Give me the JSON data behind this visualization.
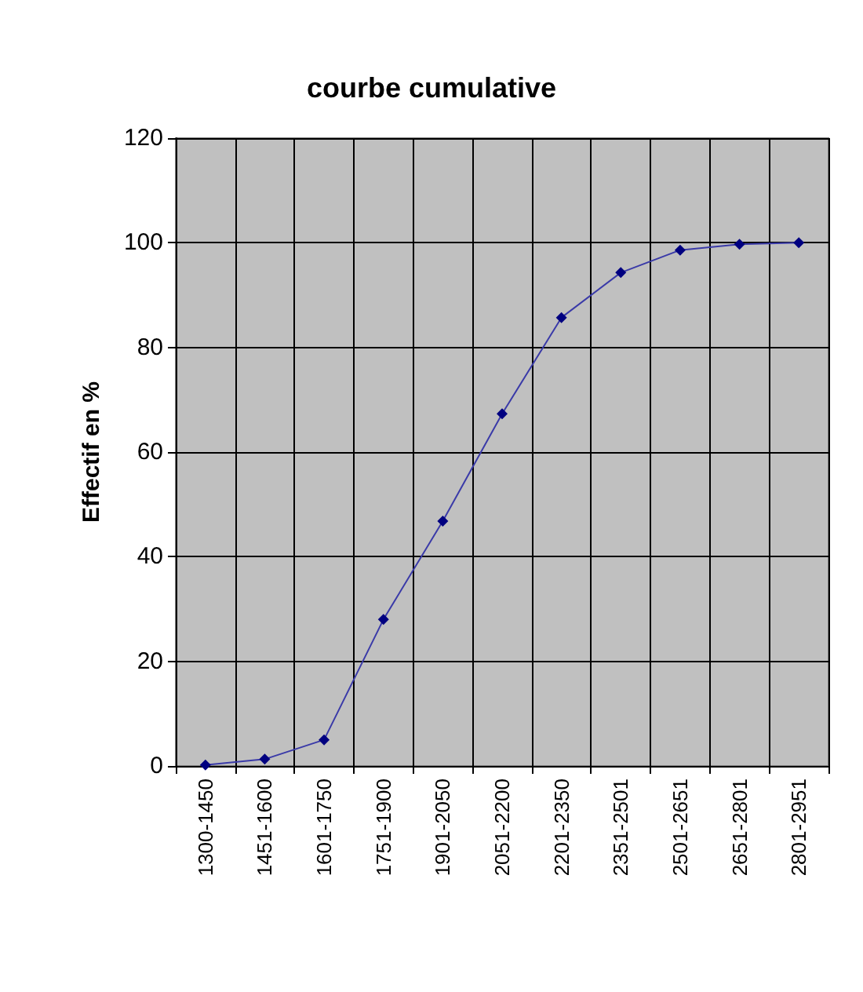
{
  "chart_data": {
    "type": "line",
    "title": "courbe cumulative",
    "ylabel": "Effectif en %",
    "categories": [
      "1300-1450",
      "1451-1600",
      "1601-1750",
      "1751-1900",
      "1901-2050",
      "2051-2200",
      "2201-2350",
      "2351-2501",
      "2501-2651",
      "2651-2801",
      "2801-2951"
    ],
    "series": [
      {
        "color": "#3a3aa8",
        "values": [
          0.2,
          1.3,
          5,
          28,
          46.8,
          67.3,
          85.7,
          94.3,
          98.6,
          99.7,
          100
        ]
      }
    ],
    "ylim": [
      0,
      120
    ],
    "yticks": [
      0,
      20,
      40,
      60,
      80,
      100,
      120
    ],
    "grid": true,
    "marker": "diamond",
    "line_style": "solid"
  }
}
